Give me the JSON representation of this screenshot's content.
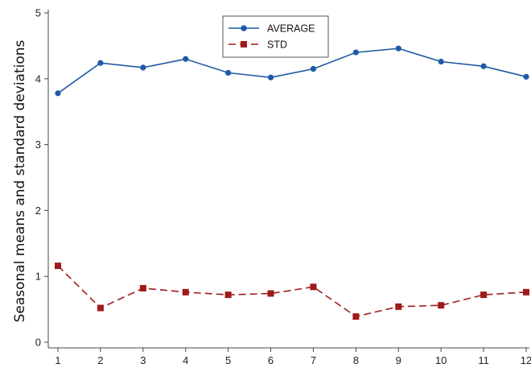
{
  "chart_data": {
    "type": "line",
    "title": "",
    "xlabel": "",
    "ylabel": "Seasonal means and standard deviations",
    "x": [
      1,
      2,
      3,
      4,
      5,
      6,
      7,
      8,
      9,
      10,
      11,
      12
    ],
    "x_tick_labels": [
      "1",
      "2",
      "3",
      "4",
      "5",
      "6",
      "7",
      "8",
      "9",
      "10",
      "11",
      "12"
    ],
    "xlim": [
      0.8,
      12.05
    ],
    "ylim": [
      -0.08,
      5.0
    ],
    "y_ticks": [
      0,
      1,
      2,
      3,
      4,
      5
    ],
    "y_tick_labels": [
      "0",
      "1",
      "2",
      "3",
      "4",
      "5"
    ],
    "grid": false,
    "legend_position": "top-center",
    "series": [
      {
        "name": "AVERAGE",
        "color": "#1f5aa6",
        "marker": "circle",
        "line_style": "solid",
        "values": [
          3.78,
          4.24,
          4.17,
          4.3,
          4.09,
          4.02,
          4.15,
          4.4,
          4.46,
          4.26,
          4.19,
          4.03
        ]
      },
      {
        "name": "STD",
        "color": "#9e1b1b",
        "marker": "square",
        "line_style": "dashed",
        "values": [
          1.16,
          0.52,
          0.82,
          0.76,
          0.72,
          0.74,
          0.84,
          0.39,
          0.54,
          0.56,
          0.72,
          0.76
        ]
      }
    ]
  }
}
